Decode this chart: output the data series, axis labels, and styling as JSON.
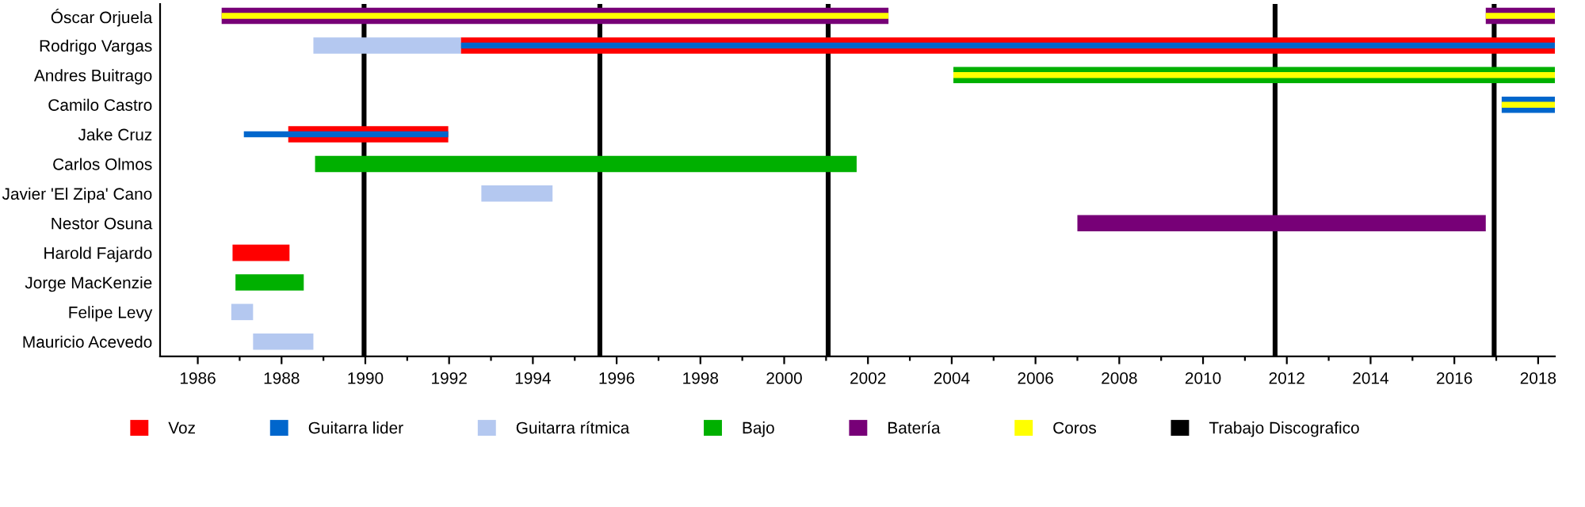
{
  "chart_data": {
    "type": "bar",
    "orientation": "horizontal",
    "categories": [
      "Óscar Orjuela",
      "Rodrigo Vargas",
      "Andres Buitrago",
      "Camilo Castro",
      "Jake Cruz",
      "Carlos Olmos",
      "Javier 'El Zipa' Cano",
      "Nestor Osuna",
      "Harold Fajardo",
      "Jorge MacKenzie",
      "Felipe Levy",
      "Mauricio Acevedo"
    ],
    "series": [
      {
        "name": "Voz",
        "color": "#ff0000",
        "base": [
          null,
          1992.28,
          null,
          null,
          1988.16,
          null,
          null,
          null,
          1986.83,
          null,
          null,
          null
        ],
        "values": [
          null,
          26.12,
          null,
          null,
          3.82,
          null,
          null,
          null,
          1.36,
          null,
          null,
          null
        ]
      },
      {
        "name": "Guitarra lider",
        "color": "#0066cc",
        "base": [
          null,
          1992.28,
          null,
          2017.13,
          1987.1,
          null,
          null,
          null,
          null,
          null,
          null,
          null
        ],
        "values": [
          null,
          26.12,
          null,
          1.27,
          4.88,
          null,
          null,
          null,
          null,
          null,
          null,
          null
        ]
      },
      {
        "name": "Guitarra rítmica",
        "color": "#b4c8f0",
        "base": [
          null,
          1988.76,
          null,
          null,
          null,
          null,
          1992.77,
          null,
          null,
          null,
          1986.8,
          1987.32
        ],
        "values": [
          null,
          3.52,
          null,
          null,
          null,
          null,
          1.7,
          null,
          null,
          null,
          0.52,
          1.44
        ]
      },
      {
        "name": "Bajo",
        "color": "#00b000",
        "base": [
          null,
          null,
          2004.04,
          null,
          null,
          1988.8,
          null,
          null,
          null,
          1986.9,
          null,
          null
        ],
        "values": [
          null,
          null,
          14.36,
          null,
          null,
          12.93,
          null,
          null,
          null,
          1.63,
          null,
          null
        ]
      },
      {
        "name": "Batería",
        "color": "#770077",
        "base": [
          1986.57,
          null,
          null,
          null,
          null,
          null,
          null,
          2007.0,
          null,
          null,
          null,
          null
        ],
        "values": [
          15.92,
          null,
          null,
          null,
          null,
          null,
          null,
          9.75,
          null,
          null,
          null,
          null
        ]
      },
      {
        "name": "Coros",
        "color": "#ffff00",
        "base": [
          1986.57,
          null,
          2004.04,
          2017.13,
          null,
          null,
          null,
          null,
          null,
          null,
          null,
          null
        ],
        "values": [
          15.92,
          null,
          14.36,
          1.27,
          null,
          null,
          null,
          null,
          null,
          null,
          null,
          null
        ]
      },
      {
        "color": "#770077",
        "base": [
          2016.75,
          null,
          null,
          null,
          null,
          null,
          null,
          null,
          null,
          null,
          null,
          null
        ],
        "values": [
          1.65,
          null,
          null,
          null,
          null,
          null,
          null,
          null,
          null,
          null,
          null,
          null
        ]
      },
      {
        "color": "#ffff00",
        "base": [
          2016.75,
          null,
          null,
          null,
          null,
          null,
          null,
          null,
          null,
          null,
          null,
          null
        ],
        "values": [
          1.65,
          null,
          null,
          null,
          null,
          null,
          null,
          null,
          null,
          null,
          null,
          null
        ]
      }
    ],
    "xlim": [
      1985.1,
      2018.4
    ],
    "xticks": [
      1986,
      {
        "value": 1987,
        "label": null
      },
      1988,
      {
        "value": 1989,
        "label": null
      },
      1990,
      {
        "value": 1991,
        "label": null
      },
      1992,
      {
        "value": 1993,
        "label": null
      },
      1994,
      {
        "value": 1995,
        "label": null
      },
      1996,
      {
        "value": 1997,
        "label": null
      },
      1998,
      {
        "value": 1999,
        "label": null
      },
      2000,
      {
        "value": 2001,
        "label": null
      },
      2002,
      {
        "value": 2003,
        "label": null
      },
      2004,
      {
        "value": 2005,
        "label": null
      },
      2006,
      {
        "value": 2007,
        "label": null
      },
      2008,
      {
        "value": 2009,
        "label": null
      },
      2010,
      {
        "value": 2011,
        "label": null
      },
      2012,
      {
        "value": 2013,
        "label": null
      },
      2014,
      {
        "value": 2015,
        "label": null
      },
      2016,
      {
        "value": 2017,
        "label": null
      },
      2018
    ],
    "ref_lines": [
      {
        "axis": "x",
        "value": 1989.97,
        "label": "Trabajo Discografico",
        "color": "#000000"
      },
      {
        "axis": "x",
        "value": 1995.6,
        "label": null,
        "color": "#000000"
      },
      {
        "axis": "x",
        "value": 2001.05,
        "label": null,
        "color": "#000000"
      },
      {
        "axis": "x",
        "value": 2011.72,
        "label": null,
        "color": "#000000"
      },
      {
        "axis": "x",
        "value": 2016.95,
        "label": null,
        "color": "#000000"
      }
    ],
    "grid": false,
    "legend": "bottom"
  }
}
